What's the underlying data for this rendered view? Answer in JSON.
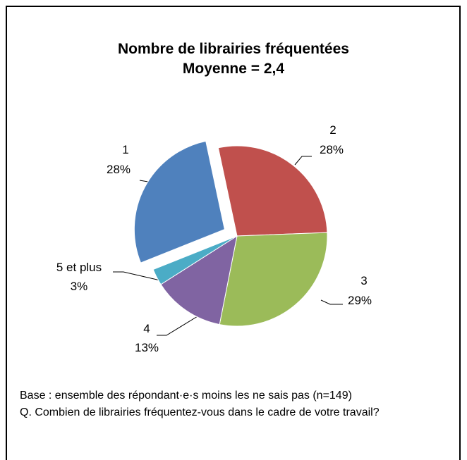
{
  "chart_data": {
    "type": "pie",
    "title": "Nombre de librairies fréquentées",
    "subtitle": "Moyenne = 2,4",
    "categories": [
      "1",
      "2",
      "3",
      "4",
      "5 et plus"
    ],
    "values": [
      28,
      28,
      29,
      13,
      3
    ],
    "value_labels": [
      "28%",
      "28%",
      "29%",
      "13%",
      "3%"
    ],
    "colors": [
      "#4f81bd",
      "#c0504d",
      "#9bbb59",
      "#8064a2",
      "#4bacc6"
    ],
    "exploded": [
      true,
      false,
      false,
      false,
      false
    ],
    "notes": [
      "Base : ensemble des répondant·e·s moins les ne sais pas (n=149)",
      "Q. Combien de librairies fréquentez-vous dans le cadre de votre travail?"
    ]
  }
}
